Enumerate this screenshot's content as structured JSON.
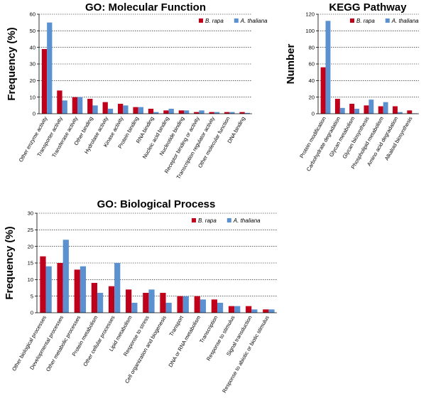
{
  "colors": {
    "b_rapa": "#c0001a",
    "a_thaliana": "#5b91d1"
  },
  "chart_data": [
    {
      "id": "mf",
      "type": "bar",
      "title": "GO: Molecular Function",
      "xlabel": "",
      "ylabel": "Frequency (%)",
      "ylim": [
        0,
        60
      ],
      "yticks": [
        0,
        10,
        20,
        30,
        40,
        50,
        60
      ],
      "grid": true,
      "legend_position": "top-right",
      "categories": [
        "Other enzyme activity",
        "Transporter activity",
        "Transferase activity",
        "Other binding",
        "Hydrolase activity",
        "Kinase activity",
        "Protein binding",
        "RNA binding",
        "Nucleic acid binding",
        "Nucleotide binding",
        "Receptor binding or activity",
        "Transcription regulator activity",
        "Other molecular function",
        "DNA binding"
      ],
      "series": [
        {
          "name": "B. rapa",
          "color": "#c0001a",
          "values": [
            39,
            14,
            10,
            9,
            7,
            6,
            4,
            3,
            2,
            2,
            1,
            1,
            1,
            1
          ]
        },
        {
          "name": "A. thaliana",
          "color": "#5b91d1",
          "values": [
            55,
            8,
            10,
            5,
            3,
            5,
            4,
            1,
            3,
            2,
            2,
            1,
            1,
            0.5
          ]
        }
      ]
    },
    {
      "id": "kegg",
      "type": "bar",
      "title": "KEGG Pathway",
      "xlabel": "",
      "ylabel": "Number",
      "ylim": [
        0,
        120
      ],
      "yticks": [
        0,
        20,
        40,
        60,
        80,
        100,
        120
      ],
      "grid": true,
      "legend_position": "top-right",
      "categories": [
        "Protein modification",
        "Carbohydrate degradation",
        "Glycan metabolism",
        "Glycan biosynthesis",
        "Phospholipid metabolism",
        "Amino acid degradation",
        "Alkaloid biosynthesis"
      ],
      "series": [
        {
          "name": "B. rapa",
          "color": "#c0001a",
          "values": [
            56,
            18,
            12,
            10,
            9,
            9,
            4
          ]
        },
        {
          "name": "A. thaliana",
          "color": "#5b91d1",
          "values": [
            112,
            7,
            6,
            17,
            14,
            2,
            0.5
          ]
        }
      ]
    },
    {
      "id": "bp",
      "type": "bar",
      "title": "GO: Biological Process",
      "xlabel": "",
      "ylabel": "Frequency (%)",
      "ylim": [
        0,
        30
      ],
      "yticks": [
        0,
        5,
        10,
        15,
        20,
        25,
        30
      ],
      "grid": true,
      "legend_position": "top-right",
      "categories": [
        "Other biological processes",
        "Developmental processes",
        "Other metabolic processes",
        "Protein metabolism",
        "Other cellular processes",
        "Lipid metabolism",
        "Response to stress",
        "Cell organization and biogenesis",
        "Transport",
        "DNA or RNA metabolism",
        "Transcription",
        "Response to stimulus",
        "Signal transduction",
        "Response to abiotic or biotic stimulus"
      ],
      "series": [
        {
          "name": "B. rapa",
          "color": "#c0001a",
          "values": [
            17,
            15,
            13,
            9,
            8,
            7,
            6,
            6,
            5,
            5,
            4,
            2,
            2,
            1
          ]
        },
        {
          "name": "A. thaliana",
          "color": "#5b91d1",
          "values": [
            14,
            22,
            14,
            6,
            15,
            3,
            7,
            3,
            5,
            4,
            3,
            2,
            1,
            1
          ]
        }
      ]
    }
  ]
}
